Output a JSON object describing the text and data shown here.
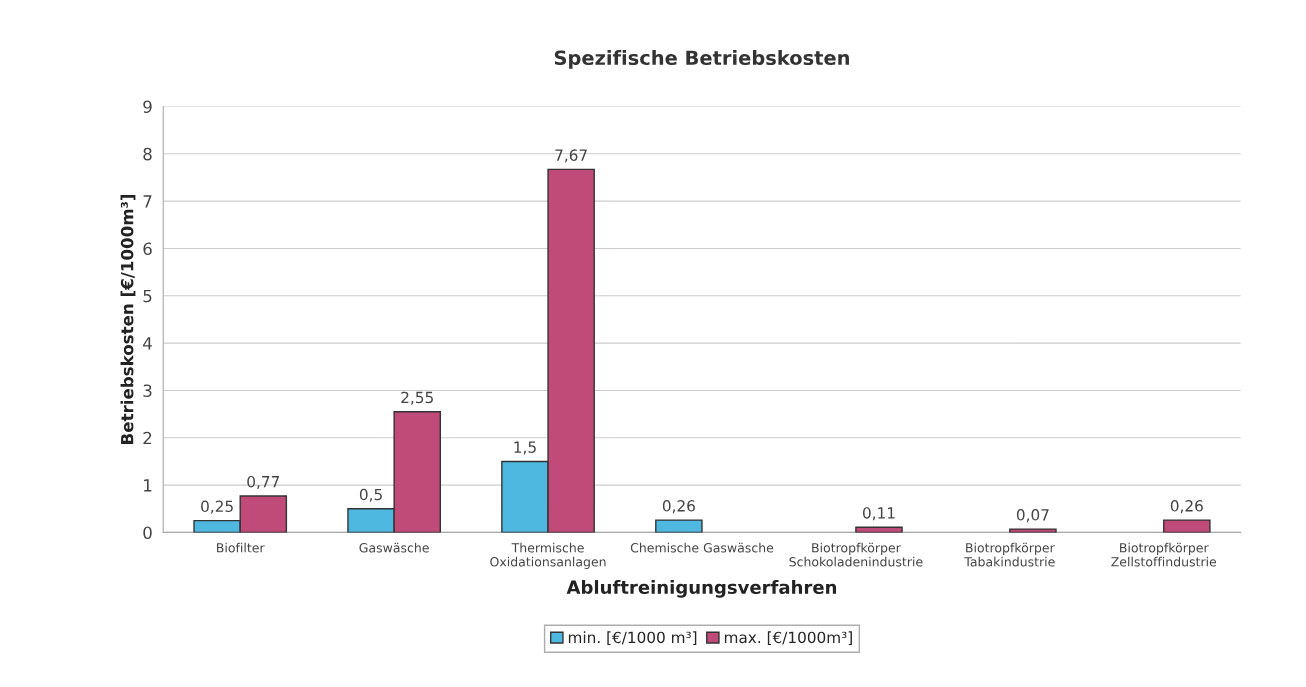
{
  "chart_data": {
    "type": "bar",
    "title": "Spezifische Betriebskosten",
    "xlabel": "Abluftreinigungsverfahren",
    "ylabel": "Betriebskosten [€/1000m³]",
    "categories": [
      "Biofilter",
      "Gaswäsche",
      "Thermische\nOxidationsanlagen",
      "Chemische Gaswäsche",
      "Biotropfkörper\nSchokoladenindustrie",
      "Biotropfkörper\nTabakindustrie",
      "Biotropfkörper\nZellstoffindustrie"
    ],
    "series": [
      {
        "name": "min. [€/1000 m³]",
        "color": "#4fb8e0",
        "values": [
          0.25,
          0.5,
          1.5,
          0.26,
          null,
          null,
          null
        ],
        "value_labels": [
          "0,25",
          "0,5",
          "1,5",
          "0,26",
          null,
          null,
          null
        ]
      },
      {
        "name": "max. [€/1000m³]",
        "color": "#c04a78",
        "values": [
          0.77,
          2.55,
          7.67,
          null,
          0.11,
          0.07,
          0.26
        ],
        "value_labels": [
          "0,77",
          "2,55",
          "7,67",
          null,
          "0,11",
          "0,07",
          "0,26"
        ]
      }
    ],
    "ylim": [
      0,
      9
    ],
    "yticks": [
      0,
      1,
      2,
      3,
      4,
      5,
      6,
      7,
      8,
      9
    ],
    "grid": "y",
    "legend": "bottom"
  }
}
